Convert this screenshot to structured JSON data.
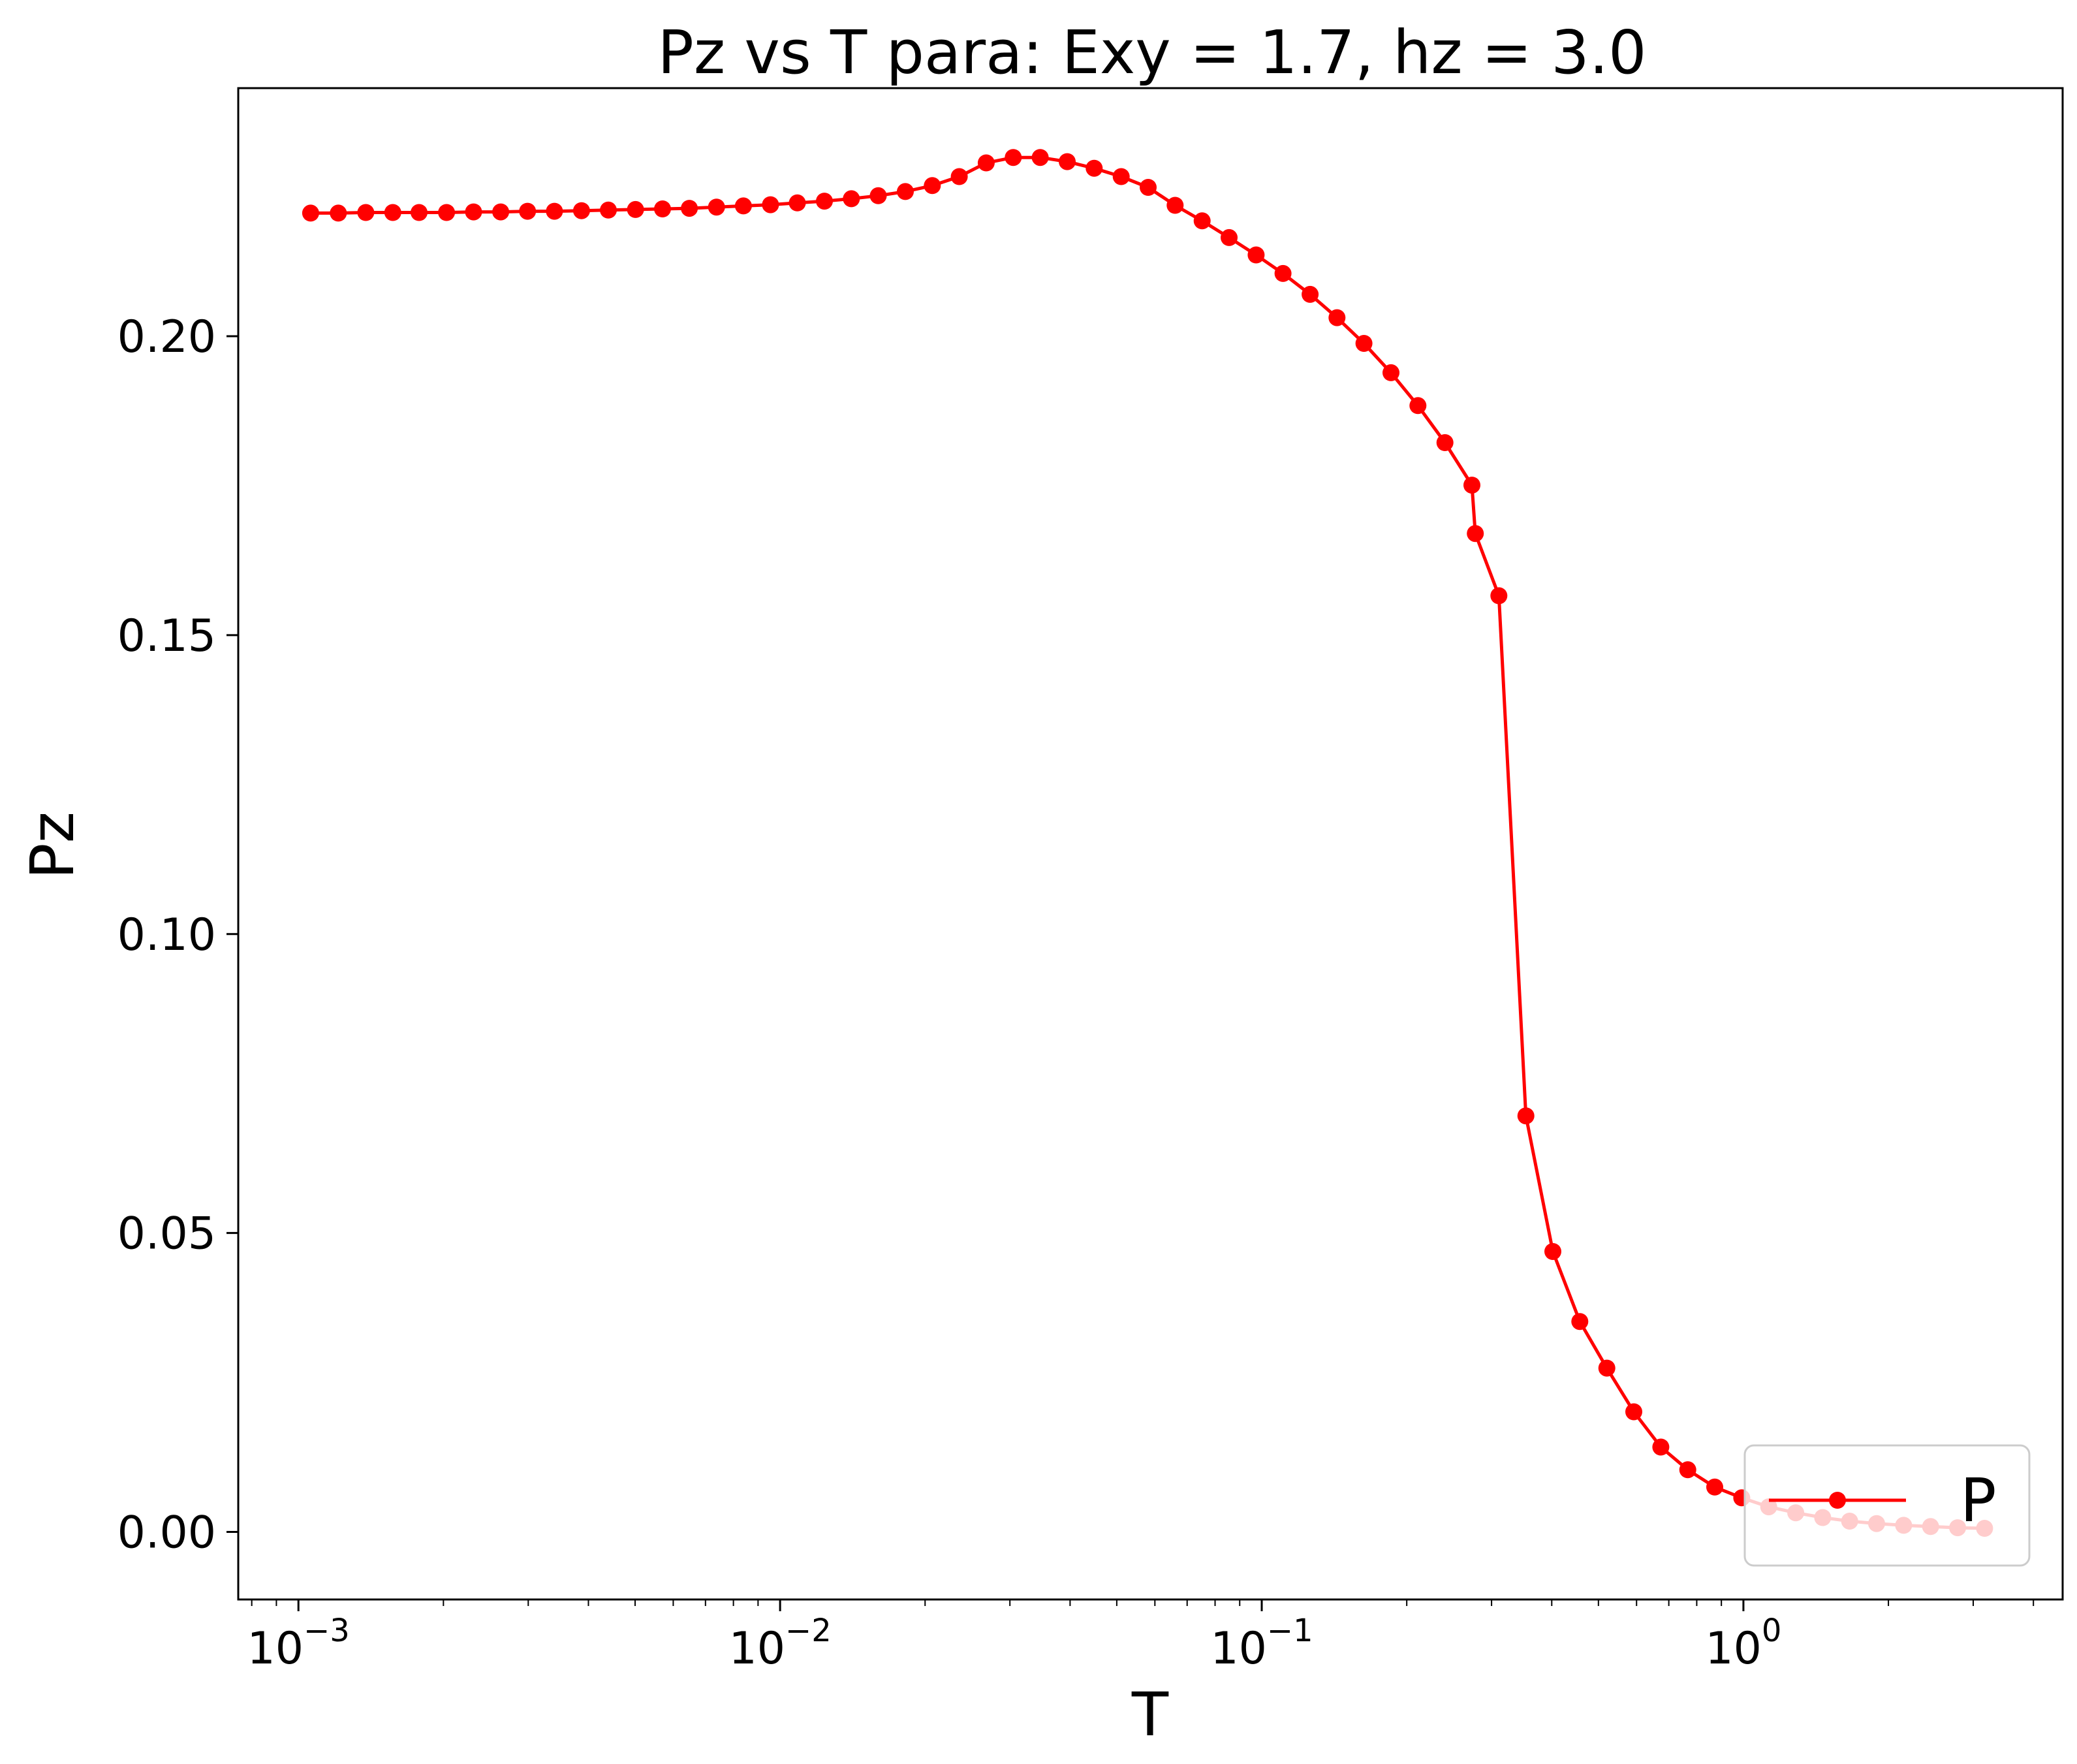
{
  "chart_data": {
    "type": "line",
    "title": "Pz vs T para: Exy = 1.7, hz = 3.0",
    "xlabel": "T",
    "ylabel": "Pz",
    "xscale": "log",
    "xlim": [
      0.00075,
      4.6
    ],
    "ylim": [
      -0.0113,
      0.2415
    ],
    "grid": false,
    "legend_placement": "lower right",
    "xticks": [
      {
        "value": 0.001,
        "base": "10",
        "exp": "−3"
      },
      {
        "value": 0.01,
        "base": "10",
        "exp": "−2"
      },
      {
        "value": 0.1,
        "base": "10",
        "exp": "−1"
      },
      {
        "value": 1,
        "base": "10",
        "exp": "0"
      }
    ],
    "yticks": [
      {
        "value": 0.0,
        "label": "0.00"
      },
      {
        "value": 0.05,
        "label": "0.05"
      },
      {
        "value": 0.1,
        "label": "0.10"
      },
      {
        "value": 0.15,
        "label": "0.15"
      },
      {
        "value": 0.2,
        "label": "0.20"
      }
    ],
    "series": [
      {
        "name": "P",
        "color": "#ff0000",
        "marker": "circle",
        "x": [
          0.00106,
          0.00121,
          0.00138,
          0.00157,
          0.00178,
          0.00203,
          0.00231,
          0.00263,
          0.00299,
          0.0034,
          0.00387,
          0.0044,
          0.00501,
          0.0057,
          0.00648,
          0.00738,
          0.00839,
          0.00955,
          0.01086,
          0.01236,
          0.01406,
          0.01599,
          0.0182,
          0.0207,
          0.02355,
          0.02679,
          0.03048,
          0.03468,
          0.03946,
          0.04489,
          0.05107,
          0.0581,
          0.0661,
          0.0752,
          0.08555,
          0.09733,
          0.1107,
          0.126,
          0.1433,
          0.163,
          0.1855,
          0.211,
          0.2401,
          0.2731,
          0.2776,
          0.3107,
          0.3535,
          0.4021,
          0.4575,
          0.5205,
          0.5921,
          0.6737,
          0.7664,
          0.872,
          0.992,
          1.1286,
          1.284,
          1.4607,
          1.6619,
          1.8906,
          2.1509,
          2.4471,
          2.784,
          3.1674
        ],
        "y": [
          0.2206,
          0.2206,
          0.2207,
          0.2207,
          0.2207,
          0.2207,
          0.2208,
          0.2208,
          0.2209,
          0.2209,
          0.221,
          0.2211,
          0.2212,
          0.2213,
          0.2214,
          0.2216,
          0.2218,
          0.222,
          0.2223,
          0.2226,
          0.223,
          0.2235,
          0.2242,
          0.2252,
          0.2267,
          0.229,
          0.2299,
          0.2299,
          0.2292,
          0.2281,
          0.2267,
          0.2249,
          0.2219,
          0.2193,
          0.2165,
          0.2136,
          0.2105,
          0.207,
          0.2031,
          0.1988,
          0.1939,
          0.1884,
          0.1822,
          0.1751,
          0.167,
          0.1566,
          0.0696,
          0.0469,
          0.0352,
          0.0274,
          0.0201,
          0.0142,
          0.0104,
          0.0075,
          0.0057,
          0.0042,
          0.0032,
          0.0024,
          0.0018,
          0.0014,
          0.0011,
          0.0009,
          0.0007,
          0.0006
        ]
      }
    ]
  }
}
